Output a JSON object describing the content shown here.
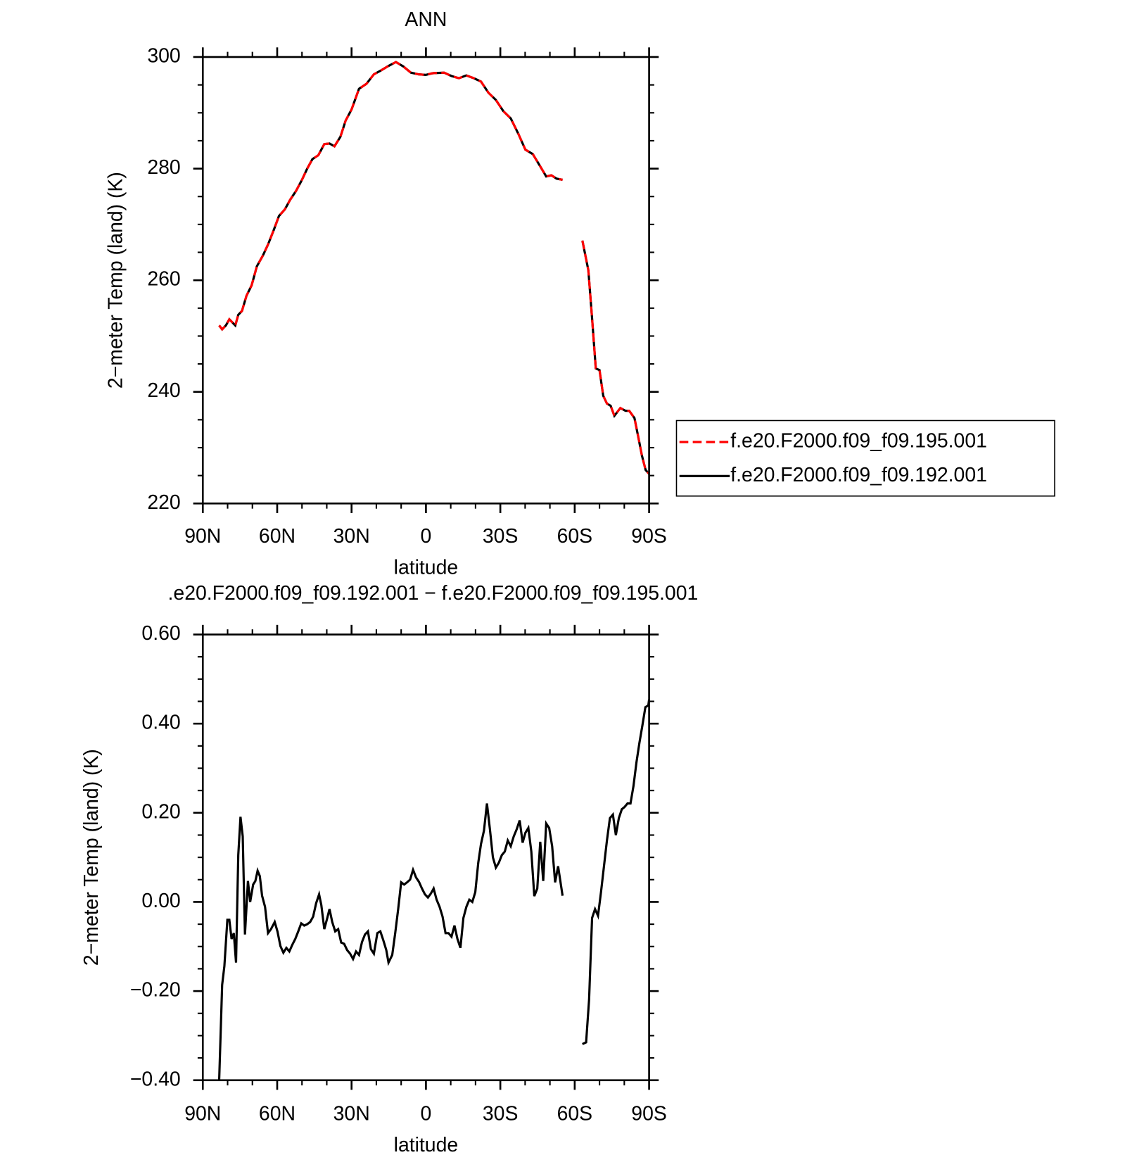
{
  "chart_data": [
    {
      "type": "line",
      "title": "ANN",
      "xlabel": "latitude",
      "ylabel": "2−meter Temp (land) (K)",
      "x": [
        83.4,
        82.2,
        80.7,
        79.3,
        76.9,
        75.7,
        74.2,
        72.4,
        70.3,
        68.2,
        65.8,
        63.7,
        61.3,
        59.3,
        56.9,
        54.8,
        52.4,
        50.0,
        47.9,
        45.8,
        43.4,
        41.0,
        38.9,
        36.9,
        34.5,
        32.4,
        30.0,
        27.0,
        24.0,
        21.0,
        18.1,
        15.1,
        12.1,
        9.1,
        6.1,
        3.1,
        0.1,
        -2.8,
        -7.3,
        -10.3,
        -13.3,
        -16.3,
        -19.3,
        -22.2,
        -25.2,
        -28.2,
        -31.2,
        -34.2,
        -37.2,
        -40.1,
        -43.1,
        -46.1,
        -48.5,
        -50.6,
        -52.7,
        -55.1,
        -59.0,
        -63.1,
        -65.5,
        -67.0,
        -68.5,
        -70.0,
        -71.5,
        -73.0,
        -74.5,
        -76.0,
        -78.4,
        -80.5,
        -82.0,
        -84.1,
        -85.6,
        -87.1,
        -88.6,
        -90.0
      ],
      "series": [
        {
          "name": "f.e20.F2000.f09_f09.195.001",
          "color": "#ff0000",
          "linestyle": "dashed",
          "values": [
            251.9,
            251.2,
            251.9,
            253.0,
            251.9,
            253.8,
            254.5,
            257.2,
            259.1,
            262.5,
            264.4,
            266.4,
            269.1,
            271.5,
            272.7,
            274.4,
            276.0,
            278.0,
            280.0,
            281.7,
            282.4,
            284.4,
            284.5,
            284.0,
            285.7,
            288.6,
            290.6,
            294.3,
            295.2,
            296.9,
            297.6,
            298.4,
            299.1,
            298.3,
            297.2,
            296.9,
            296.8,
            297.1,
            297.2,
            296.6,
            296.2,
            296.7,
            296.2,
            295.6,
            293.6,
            292.3,
            290.3,
            289.0,
            286.3,
            283.4,
            282.6,
            280.4,
            278.6,
            278.8,
            278.2,
            278.0,
            null,
            267.1,
            261.8,
            253.2,
            244.2,
            243.9,
            239.3,
            237.9,
            237.5,
            235.7,
            237.1,
            236.6,
            236.6,
            235.3,
            232.0,
            228.6,
            226.0,
            225.3
          ]
        },
        {
          "name": "f.e20.F2000.f09_f09.192.001",
          "color": "#000000",
          "linestyle": "solid",
          "values": [
            251.9,
            251.2,
            251.9,
            253.0,
            251.9,
            253.8,
            254.5,
            257.2,
            259.1,
            262.5,
            264.4,
            266.4,
            269.1,
            271.5,
            272.7,
            274.4,
            276.0,
            278.0,
            280.0,
            281.7,
            282.4,
            284.4,
            284.5,
            284.0,
            285.7,
            288.6,
            290.6,
            294.3,
            295.2,
            296.9,
            297.6,
            298.4,
            299.1,
            298.3,
            297.2,
            296.9,
            296.8,
            297.1,
            297.2,
            296.6,
            296.2,
            296.7,
            296.2,
            295.6,
            293.6,
            292.3,
            290.3,
            289.0,
            286.3,
            283.4,
            282.6,
            280.4,
            278.6,
            278.8,
            278.2,
            278.0,
            null,
            267.1,
            261.8,
            253.2,
            244.2,
            243.9,
            239.3,
            237.9,
            237.5,
            235.7,
            237.1,
            236.6,
            236.6,
            235.3,
            232.0,
            228.6,
            226.0,
            225.3
          ]
        }
      ],
      "xlim": [
        90,
        -90
      ],
      "xticks": [
        {
          "value": 90,
          "label": "90N"
        },
        {
          "value": 60,
          "label": "60N"
        },
        {
          "value": 30,
          "label": "30N"
        },
        0,
        {
          "value": -30,
          "label": "30S"
        },
        {
          "value": -60,
          "label": "60S"
        },
        {
          "value": -90,
          "label": "90S"
        }
      ],
      "ylim": [
        220,
        300
      ],
      "yticks": [
        220,
        240,
        260,
        280,
        300
      ],
      "legend": "right"
    },
    {
      "type": "line",
      "title": ".e20.F2000.f09_f09.192.001  −  f.e20.F2000.f09_f09.195.001",
      "xlabel": "latitude",
      "ylabel": "2−meter Temp (land) (K)",
      "x": [
        83.4,
        82.2,
        81.3,
        80.1,
        79.3,
        78.4,
        77.5,
        76.6,
        75.7,
        74.8,
        73.9,
        73.0,
        71.8,
        70.9,
        69.7,
        68.8,
        67.9,
        67.0,
        66.1,
        64.9,
        63.7,
        62.5,
        61.0,
        59.9,
        58.7,
        57.5,
        56.3,
        55.1,
        53.9,
        52.7,
        51.5,
        50.3,
        49.1,
        47.9,
        46.7,
        45.5,
        44.3,
        43.1,
        42.2,
        41.0,
        39.8,
        38.9,
        37.8,
        36.6,
        35.4,
        34.2,
        33.0,
        31.8,
        30.6,
        29.4,
        28.2,
        27.0,
        25.8,
        24.6,
        23.4,
        22.2,
        21.0,
        19.6,
        18.4,
        17.2,
        16.0,
        15.1,
        13.6,
        12.4,
        11.2,
        10.0,
        8.8,
        7.6,
        6.4,
        5.2,
        4.0,
        2.8,
        1.6,
        0.4,
        -0.8,
        -2.0,
        -3.1,
        -4.3,
        -5.5,
        -6.7,
        -7.9,
        -9.1,
        -10.3,
        -11.5,
        -12.7,
        -13.9,
        -15.1,
        -16.3,
        -17.5,
        -18.7,
        -19.9,
        -21.1,
        -22.2,
        -23.4,
        -24.6,
        -25.8,
        -27.0,
        -28.2,
        -29.4,
        -30.6,
        -31.8,
        -33.0,
        -34.2,
        -35.4,
        -36.6,
        -37.8,
        -39.0,
        -40.1,
        -41.3,
        -42.5,
        -43.7,
        -44.9,
        -46.1,
        -47.3,
        -48.5,
        -49.7,
        -50.9,
        -52.1,
        -53.3,
        -55.1,
        -59.0,
        -63.1,
        -64.6,
        -65.8,
        -67.0,
        -68.2,
        -69.4,
        -70.6,
        -71.8,
        -73.0,
        -74.2,
        -75.4,
        -76.6,
        -77.8,
        -79.0,
        -80.1,
        -81.3,
        -82.5,
        -83.7,
        -84.9,
        -86.1,
        -87.3,
        -88.5,
        -89.7,
        -90.0
      ],
      "color": "#000000",
      "values": [
        -0.4,
        -0.186,
        -0.144,
        -0.04,
        -0.04,
        -0.083,
        -0.07,
        -0.136,
        0.105,
        0.191,
        0.147,
        -0.073,
        0.047,
        0.0,
        0.039,
        0.047,
        0.07,
        0.058,
        0.014,
        -0.011,
        -0.07,
        -0.061,
        -0.045,
        -0.066,
        -0.099,
        -0.114,
        -0.103,
        -0.111,
        -0.096,
        -0.083,
        -0.066,
        -0.048,
        -0.053,
        -0.05,
        -0.045,
        -0.033,
        -0.003,
        0.017,
        -0.007,
        -0.061,
        -0.036,
        -0.016,
        -0.045,
        -0.066,
        -0.061,
        -0.091,
        -0.094,
        -0.108,
        -0.116,
        -0.128,
        -0.111,
        -0.119,
        -0.09,
        -0.073,
        -0.066,
        -0.106,
        -0.116,
        -0.07,
        -0.066,
        -0.086,
        -0.108,
        -0.136,
        -0.119,
        -0.07,
        -0.016,
        0.044,
        0.039,
        0.044,
        0.05,
        0.072,
        0.055,
        0.045,
        0.03,
        0.017,
        0.01,
        0.019,
        0.03,
        0.005,
        -0.011,
        -0.033,
        -0.07,
        -0.07,
        -0.078,
        -0.053,
        -0.083,
        -0.103,
        -0.036,
        -0.011,
        0.005,
        0.0,
        0.022,
        0.088,
        0.13,
        0.16,
        0.221,
        0.163,
        0.1,
        0.077,
        0.088,
        0.105,
        0.113,
        0.138,
        0.125,
        0.147,
        0.163,
        0.183,
        0.133,
        0.155,
        0.166,
        0.113,
        0.013,
        0.03,
        0.135,
        0.047,
        0.176,
        0.166,
        0.125,
        0.044,
        0.08,
        0.014,
        null,
        -0.319,
        -0.315,
        -0.219,
        -0.036,
        -0.016,
        -0.031,
        0.022,
        0.08,
        0.138,
        0.188,
        0.196,
        0.15,
        0.188,
        0.208,
        0.213,
        0.221,
        0.221,
        0.26,
        0.313,
        0.357,
        0.396,
        0.437,
        0.441,
        0.454
      ],
      "xlim": [
        90,
        -90
      ],
      "xticks": [
        {
          "value": 90,
          "label": "90N"
        },
        {
          "value": 60,
          "label": "60N"
        },
        {
          "value": 30,
          "label": "30N"
        },
        0,
        {
          "value": -30,
          "label": "30S"
        },
        {
          "value": -60,
          "label": "60S"
        },
        {
          "value": -90,
          "label": "90S"
        }
      ],
      "ylim": [
        -0.4,
        0.6
      ],
      "yticks": [
        {
          "value": -0.4,
          "label": "−0.40"
        },
        {
          "value": -0.2,
          "label": "−0.20"
        },
        {
          "value": 0,
          "label": "0.00"
        },
        {
          "value": 0.2,
          "label": "0.20"
        },
        {
          "value": 0.4,
          "label": "0.40"
        },
        {
          "value": 0.6,
          "label": "0.60"
        }
      ]
    }
  ]
}
